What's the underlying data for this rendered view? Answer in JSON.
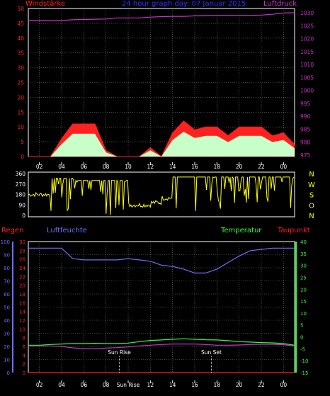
{
  "title": "24 hour graph day: 07 Januar 2015",
  "colors": {
    "background": "#000000",
    "axis": "#ffffff",
    "grid": "#7f7f7f",
    "wind": "#ff2020",
    "gust": "#ffffff",
    "gust_fill": "#c8ffc8",
    "pressure": "#cc33cc",
    "direction": "#ffff00",
    "temperature": "#33ff33",
    "dewpoint": "#cc33cc",
    "humidity": "#6f6fff",
    "rain": "#ff2020",
    "title": "#3333ff"
  },
  "panel1": {
    "left_label": "Windstärke",
    "right_label": "Luftdruck",
    "left_ticks": [
      "0",
      "5",
      "10",
      "15",
      "20",
      "25",
      "30",
      "35",
      "40",
      "45",
      "50"
    ],
    "right_ticks": [
      "975",
      "980",
      "985",
      "990",
      "995",
      "1000",
      "1005",
      "1010",
      "1015",
      "1020",
      "1025",
      "1030"
    ]
  },
  "panel2": {
    "ticks": [
      "0",
      "90",
      "180",
      "270",
      "360"
    ],
    "compass": [
      "N",
      "W",
      "S",
      "O",
      "N"
    ]
  },
  "panel3": {
    "rain_label": "Regen",
    "humidity_label": "Luftfeuchte",
    "temp_label": "Temperatur",
    "dew_label": "Taupunkt",
    "humidity_ticks": [
      "0",
      "10",
      "20",
      "30",
      "40",
      "50",
      "60",
      "70",
      "80",
      "90",
      "100"
    ],
    "rain_ticks": [
      "0",
      "2",
      "4",
      "6",
      "8",
      "10",
      "12",
      "14",
      "16",
      "18",
      "20",
      "22",
      "24",
      "26",
      "28",
      "30"
    ],
    "temp_ticks": [
      "-15",
      "-10",
      "-5",
      "0",
      "5",
      "10",
      "15",
      "20",
      "25",
      "30",
      "35",
      "40"
    ],
    "sunrise_label": "Sun Rise",
    "sunset_label": "Sun Set"
  },
  "x_ticks_top": [
    "02",
    "04",
    "06",
    "08",
    "10",
    "12",
    "14",
    "16",
    "18",
    "20",
    "22",
    "00"
  ],
  "x_ticks_bottom": [
    "02",
    "04",
    "06",
    "08",
    "Sun Rise",
    "12",
    "14",
    "16",
    "18",
    "20",
    "22",
    "00"
  ],
  "chart_data": [
    {
      "type": "area",
      "title": "24 hour graph day: 07 Januar 2015",
      "x": [
        0,
        1,
        2,
        3,
        4,
        5,
        6,
        7,
        8,
        9,
        10,
        11,
        12,
        13,
        14,
        15,
        16,
        17,
        18,
        19,
        20,
        21,
        22,
        23,
        24
      ],
      "x_unit": "hours from 01:00",
      "series": [
        {
          "name": "Windstärke",
          "values": [
            0,
            0,
            0,
            6,
            11,
            11,
            11,
            2,
            0,
            0,
            0,
            3,
            0,
            8,
            12,
            9,
            10,
            10,
            7,
            10,
            10,
            10,
            7,
            8,
            4
          ]
        },
        {
          "name": "Luftdruck",
          "values": [
            1027,
            1027,
            1027,
            1027,
            1027.3,
            1027.4,
            1027.5,
            1027.6,
            1028,
            1028,
            1028,
            1028.3,
            1028.5,
            1028.6,
            1028.6,
            1028.8,
            1028.9,
            1029,
            1029,
            1029,
            1029,
            1029.1,
            1029.4,
            1029.9,
            1030
          ]
        }
      ],
      "ylim_left": [
        0,
        50
      ],
      "ylim_right": [
        975,
        1030
      ]
    },
    {
      "type": "line",
      "series": [
        {
          "name": "Wind direction",
          "values": [
            180,
            180,
            320,
            320,
            300,
            300,
            300,
            300,
            300,
            90,
            90,
            110,
            150,
            330,
            330,
            330,
            330,
            330,
            330,
            330,
            330,
            330,
            330,
            330,
            330
          ]
        }
      ],
      "ylim": [
        0,
        360
      ]
    },
    {
      "type": "line",
      "x": [
        0,
        1,
        2,
        3,
        4,
        5,
        6,
        7,
        8,
        9,
        10,
        11,
        12,
        13,
        14,
        15,
        16,
        17,
        18,
        19,
        20,
        21,
        22,
        23,
        24
      ],
      "series": [
        {
          "name": "Luftfeuchte",
          "values": [
            95,
            95,
            95,
            95,
            87,
            86,
            86,
            86,
            86,
            87,
            86,
            85,
            82,
            81,
            79,
            76,
            76,
            79,
            84,
            89,
            93,
            94,
            95,
            95,
            95
          ]
        },
        {
          "name": "Temperatur",
          "values": [
            -3.5,
            -3.5,
            -3.2,
            -3,
            -2.8,
            -2.8,
            -2.7,
            -2.8,
            -2.8,
            -2.6,
            -2,
            -1.5,
            -1.3,
            -1,
            -0.8,
            -1,
            -1.2,
            -1.3,
            -1.6,
            -2,
            -2.2,
            -2.4,
            -2.5,
            -2.8,
            -3.5
          ]
        },
        {
          "name": "Taupunkt",
          "values": [
            -3.8,
            -3.8,
            -3.8,
            -4,
            -4.6,
            -5,
            -5,
            -4.7,
            -4.5,
            -4.2,
            -3.8,
            -3.5,
            -3.2,
            -3,
            -3,
            -3,
            -3.2,
            -3.5,
            -3.5,
            -3.4,
            -3.2,
            -3.1,
            -3.1,
            -3.3,
            -3.8
          ]
        },
        {
          "name": "Regen",
          "values": [
            0,
            0,
            0,
            0,
            0,
            0,
            0,
            0,
            0,
            0,
            0,
            0,
            0,
            0,
            0,
            0,
            0,
            0,
            0,
            0,
            0,
            0,
            0,
            0,
            0
          ]
        }
      ],
      "ylim_humidity": [
        0,
        100
      ],
      "ylim_temp": [
        -15,
        40
      ],
      "ylim_rain": [
        0,
        30
      ],
      "sunrise_hour": 8.2,
      "sunset_hour": 16.5
    }
  ]
}
